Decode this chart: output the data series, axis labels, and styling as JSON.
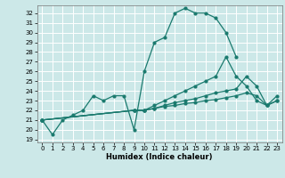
{
  "xlabel": "Humidex (Indice chaleur)",
  "bg_color": "#cce8e8",
  "grid_color": "#ffffff",
  "line_color": "#1a7a6e",
  "xlim": [
    -0.5,
    23.5
  ],
  "ylim": [
    18.7,
    32.8
  ],
  "yticks": [
    19,
    20,
    21,
    22,
    23,
    24,
    25,
    26,
    27,
    28,
    29,
    30,
    31,
    32
  ],
  "xticks": [
    0,
    1,
    2,
    3,
    4,
    5,
    6,
    7,
    8,
    9,
    10,
    11,
    12,
    13,
    14,
    15,
    16,
    17,
    18,
    19,
    20,
    21,
    22,
    23
  ],
  "lines": [
    {
      "x": [
        0,
        1,
        2,
        3,
        4,
        5,
        6,
        7,
        8,
        9,
        10,
        11,
        12,
        13,
        14,
        15,
        16,
        17,
        18,
        19
      ],
      "y": [
        21,
        19.5,
        21,
        21.5,
        22,
        23.5,
        23,
        23.5,
        23.5,
        20,
        26,
        29,
        29.5,
        32,
        32.5,
        32,
        32,
        31.5,
        30,
        27.5
      ]
    },
    {
      "x": [
        0,
        9,
        10,
        11,
        12,
        13,
        14,
        15,
        16,
        17,
        18,
        19,
        20,
        21,
        22,
        23
      ],
      "y": [
        21,
        22,
        22,
        22.5,
        23,
        23.5,
        24,
        24.5,
        25,
        25.5,
        27.5,
        25.5,
        24.5,
        23,
        22.5,
        23.5
      ]
    },
    {
      "x": [
        0,
        9,
        10,
        11,
        12,
        13,
        14,
        15,
        16,
        17,
        18,
        19,
        20,
        21,
        22,
        23
      ],
      "y": [
        21,
        22,
        22,
        22.2,
        22.5,
        22.8,
        23.0,
        23.2,
        23.5,
        23.8,
        24.0,
        24.2,
        25.5,
        24.5,
        22.5,
        23
      ]
    },
    {
      "x": [
        0,
        9,
        10,
        11,
        12,
        13,
        14,
        15,
        16,
        17,
        18,
        19,
        20,
        21,
        22,
        23
      ],
      "y": [
        21,
        22,
        22,
        22.2,
        22.4,
        22.5,
        22.7,
        22.8,
        23.0,
        23.1,
        23.3,
        23.5,
        23.8,
        23.5,
        22.5,
        23
      ]
    }
  ]
}
